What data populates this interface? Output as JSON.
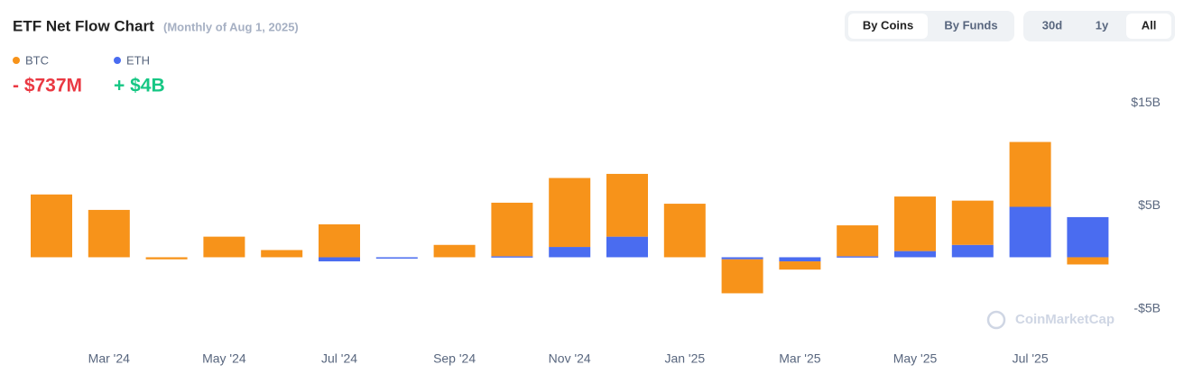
{
  "controls": {
    "group_a": [
      "By Coins",
      "By Funds"
    ],
    "group_b": [
      "30d",
      "1y",
      "All"
    ]
  },
  "watermark": "CoinMarketCap",
  "chart_data": {
    "type": "stacked-bar",
    "title": "ETF Net Flow Chart",
    "subtitle": "(Monthly of Aug 1, 2025)",
    "categories": [
      null,
      "Mar '24",
      null,
      "May '24",
      null,
      "Jul '24",
      null,
      "Sep '24",
      null,
      "Nov '24",
      null,
      "Jan '25",
      null,
      "Mar '25",
      null,
      "May '25",
      null,
      "Jul '25",
      null
    ],
    "series": [
      {
        "name": "BTC",
        "color": "#f7931a",
        "total": "- $737M",
        "total_color": "#ea3943",
        "values": [
          6.1,
          4.6,
          -0.2,
          2.0,
          0.7,
          3.2,
          0,
          1.2,
          5.2,
          6.7,
          6.1,
          5.2,
          -3.3,
          -0.8,
          3.0,
          5.3,
          4.3,
          6.3,
          -0.7
        ]
      },
      {
        "name": "ETH",
        "color": "#4a6cf0",
        "total": "+ $4B",
        "total_color": "#16c784",
        "values": [
          0,
          0,
          0,
          0,
          0,
          -0.4,
          -0.1,
          0,
          0.1,
          1.0,
          2.0,
          0,
          -0.2,
          -0.4,
          0.1,
          0.6,
          1.2,
          4.9,
          3.9
        ]
      }
    ],
    "ylim": [
      -6,
      16.5
    ],
    "yticks": [
      {
        "value": 15,
        "label": "$15B"
      },
      {
        "value": 5,
        "label": "$5B"
      },
      {
        "value": -5,
        "label": "-$5B"
      }
    ],
    "grid": false
  }
}
